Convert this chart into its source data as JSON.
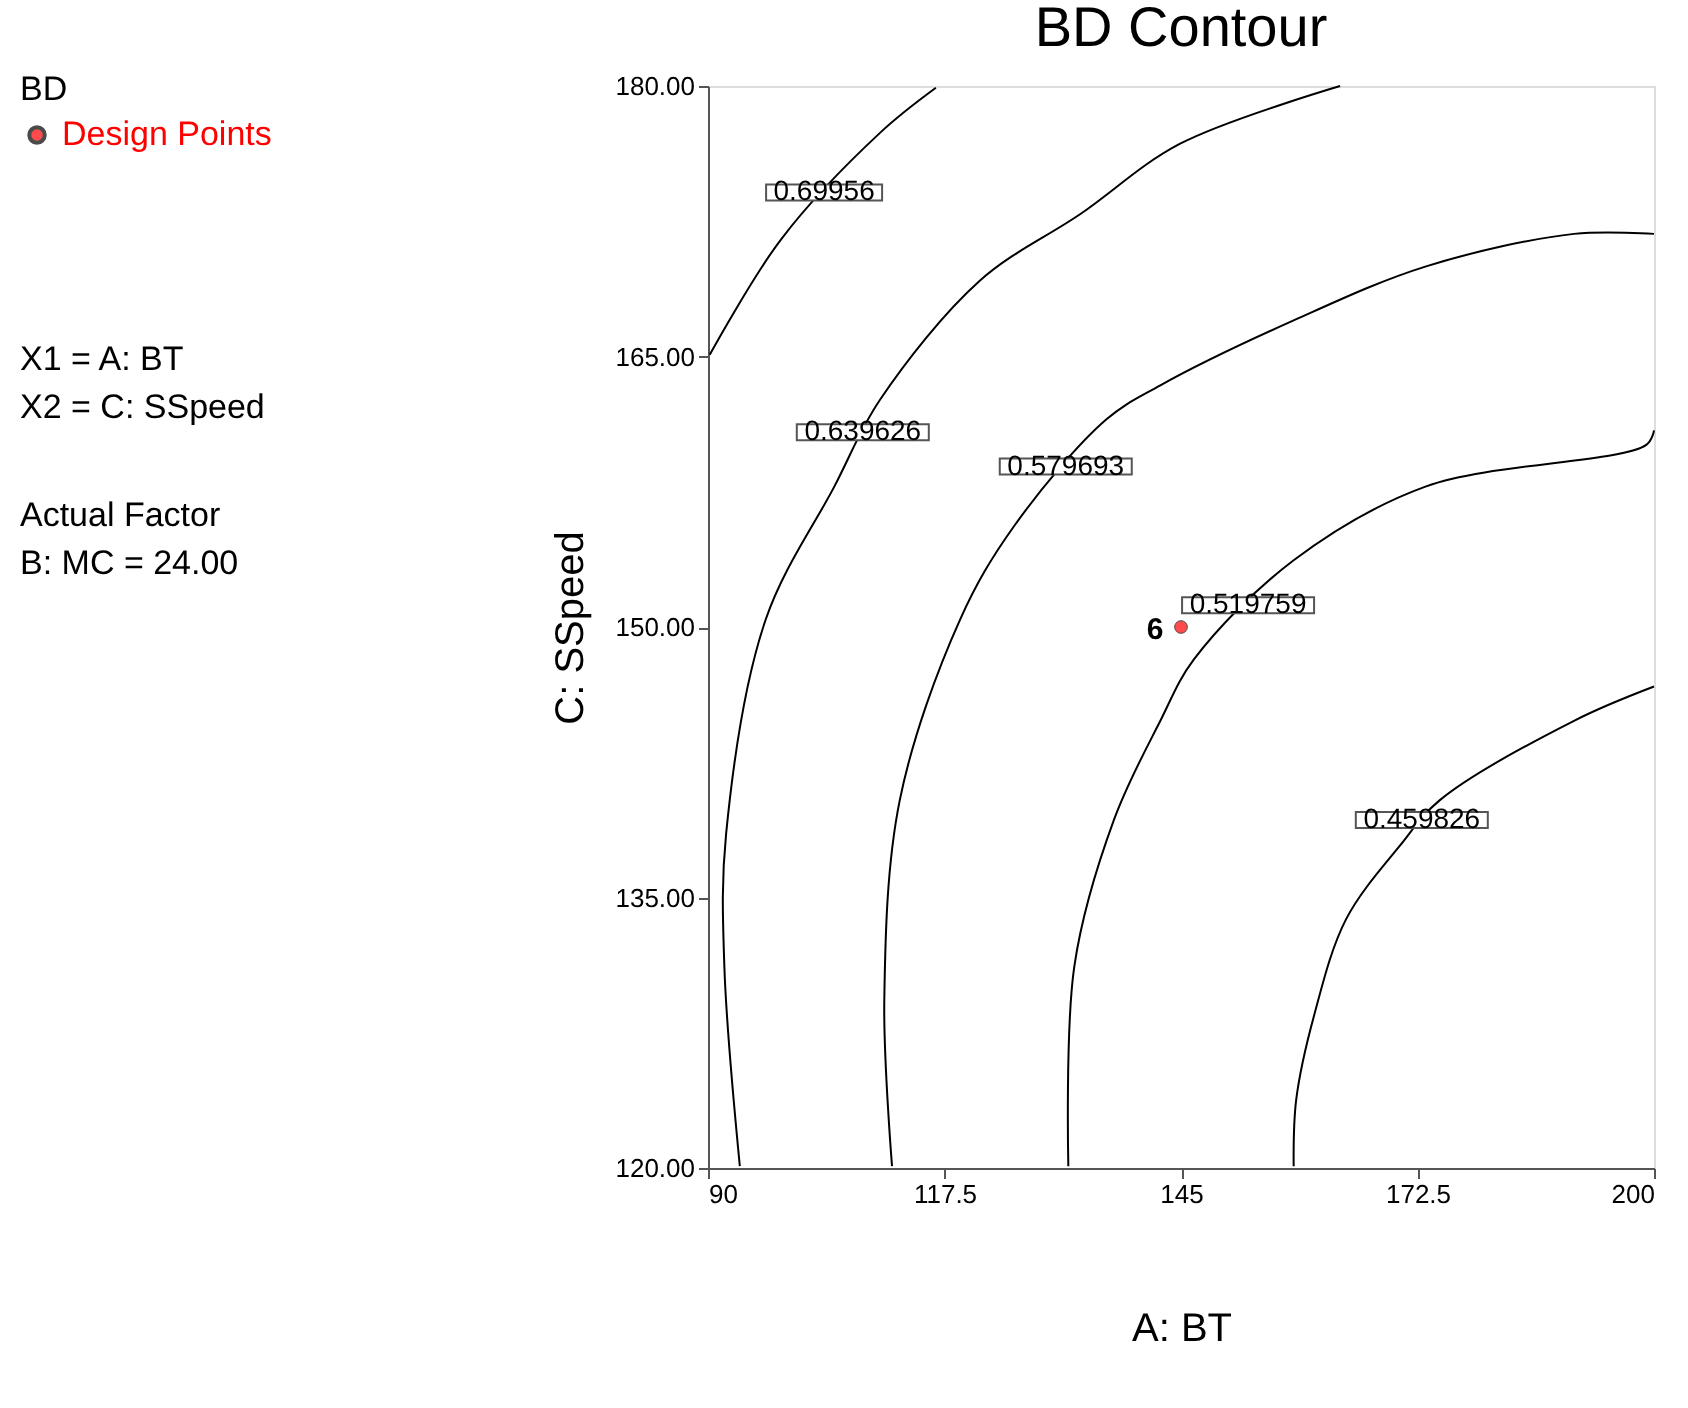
{
  "chart_data": {
    "type": "line",
    "title": "BD Contour",
    "xlabel": "A: BT",
    "ylabel": "C: SSpeed",
    "legend_title": "BD",
    "legend": "left",
    "grid": false,
    "xlim": [
      90,
      200
    ],
    "xticks": [
      90,
      117.5,
      145,
      172.5,
      200
    ],
    "ylim": [
      120,
      180
    ],
    "yticks": [
      {
        "value": 120,
        "label": "120.00"
      },
      {
        "value": 135,
        "label": "135.00"
      },
      {
        "value": 150,
        "label": "150.00"
      },
      {
        "value": 165,
        "label": "165.00"
      },
      {
        "value": 180,
        "label": "180.00"
      }
    ],
    "series": [
      {
        "color": "#000000",
        "line_style": "solid",
        "x": [
          116.5,
          110.0,
          98.5,
          90.2
        ],
        "values": [
          179.9,
          177.4,
          171.5,
          165.1
        ]
      },
      {
        "color": "#000000",
        "line_style": "solid",
        "x": [
          163.5,
          144.9,
          133.3,
          121.6,
          110.0,
          104.7,
          96.7,
          92.1,
          91.9,
          93.7
        ],
        "values": [
          180.0,
          176.8,
          172.9,
          169.2,
          162.6,
          157.8,
          150.4,
          138.5,
          131.2,
          120.1
        ]
      },
      {
        "color": "#000000",
        "line_style": "solid",
        "x": [
          200.0,
          190.7,
          173.5,
          158.1,
          142.6,
          136.3,
          125.6,
          119.3,
          112.3,
          110.5,
          111.4
        ],
        "values": [
          171.8,
          171.8,
          170.0,
          167.0,
          163.4,
          161.5,
          155.6,
          150.4,
          140.4,
          129.3,
          120.1
        ]
      },
      {
        "color": "#000000",
        "line_style": "solid",
        "x": [
          200.0,
          199.1,
          173.5,
          158.1,
          146.5,
          142.6,
          137.2,
          132.6,
          131.9
        ],
        "values": [
          160.9,
          160.1,
          157.8,
          153.7,
          148.2,
          144.8,
          139.3,
          131.2,
          120.1
        ]
      },
      {
        "color": "#000000",
        "line_style": "solid",
        "x": [
          200.0,
          190.7,
          175.1,
          170.5,
          164.2,
          160.5,
          158.4,
          158.1
        ],
        "values": [
          146.7,
          144.8,
          140.4,
          137.9,
          133.8,
          128.5,
          123.8,
          120.1
        ]
      },
      {
        "type": "scatter",
        "name": "Design Points",
        "color": "#ff0000",
        "marker": "circle",
        "x": [
          145
        ],
        "values": [
          150
        ]
      }
    ],
    "annotations": [
      {
        "text": "0.69956",
        "x": 103.5,
        "y": 174.1
      },
      {
        "text": "0.639626",
        "x": 108.0,
        "y": 160.8
      },
      {
        "text": "0.579693",
        "x": 131.6,
        "y": 158.9
      },
      {
        "text": "0.519759",
        "x": 152.8,
        "y": 151.2
      },
      {
        "text": "0.459826",
        "x": 173.0,
        "y": 139.3
      },
      {
        "text": "6",
        "x": 145,
        "y": 150
      },
      "X1 = A: BT",
      "X2 = C: SSpeed",
      "Actual Factor",
      "B: MC = 24.00"
    ]
  }
}
